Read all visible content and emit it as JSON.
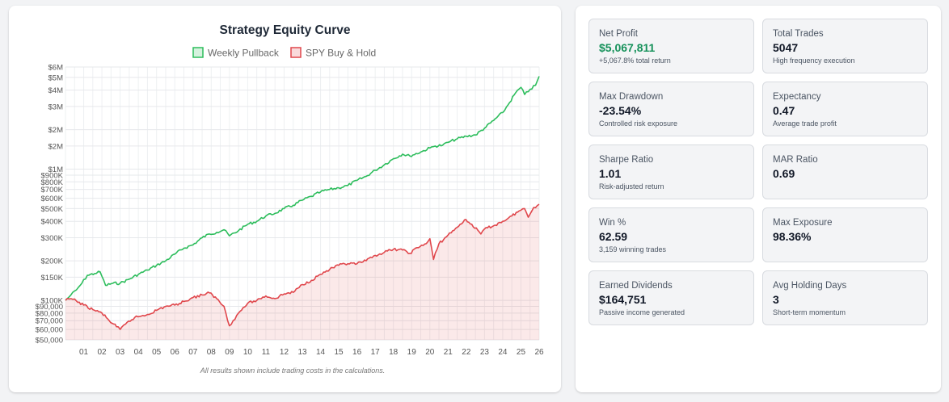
{
  "chart_data": {
    "type": "line",
    "title": "Strategy Equity Curve",
    "legend_position": "top-center",
    "yscale": "log",
    "ylim": [
      50000,
      6000000
    ],
    "xlim": [
      2000,
      2026
    ],
    "grid": true,
    "footnote": "All results shown include trading costs in the calculations.",
    "y_ticks": [
      50000,
      60000,
      70000,
      80000,
      90000,
      100000,
      150000,
      200000,
      300000,
      400000,
      500000,
      600000,
      700000,
      800000,
      900000,
      1000000,
      1500000,
      2000000,
      3000000,
      4000000,
      5000000,
      6000000
    ],
    "y_tick_labels": [
      "$50,000",
      "$60,000",
      "$70,000",
      "$80,000",
      "$90,000",
      "$100K",
      "$150K",
      "$200K",
      "$300K",
      "$400K",
      "$500K",
      "$600K",
      "$700K",
      "$800K",
      "$900K",
      "$1M",
      "$2M",
      "$2M",
      "$3M",
      "$4M",
      "$5M",
      "$6M"
    ],
    "x_ticks": [
      2001,
      2002,
      2003,
      2004,
      2005,
      2006,
      2007,
      2008,
      2009,
      2010,
      2011,
      2012,
      2013,
      2014,
      2015,
      2016,
      2017,
      2018,
      2019,
      2020,
      2021,
      2022,
      2023,
      2024,
      2025,
      2026
    ],
    "x_tick_labels": [
      "01",
      "02",
      "03",
      "04",
      "05",
      "06",
      "07",
      "08",
      "09",
      "10",
      "11",
      "12",
      "13",
      "14",
      "15",
      "16",
      "17",
      "18",
      "19",
      "20",
      "21",
      "22",
      "23",
      "24",
      "25",
      "26"
    ],
    "series": [
      {
        "name": "Weekly Pullback",
        "color": "#2dbd5c",
        "fill": false,
        "x": [
          2000.0,
          2000.3,
          2000.6,
          2000.9,
          2001.2,
          2001.6,
          2001.9,
          2002.2,
          2002.6,
          2003.0,
          2003.5,
          2004.0,
          2004.5,
          2005.0,
          2005.5,
          2006.0,
          2006.5,
          2007.0,
          2007.5,
          2007.9,
          2008.3,
          2008.7,
          2009.0,
          2009.5,
          2010.0,
          2010.5,
          2011.0,
          2011.5,
          2012.0,
          2012.5,
          2013.0,
          2013.5,
          2014.0,
          2014.5,
          2015.0,
          2015.5,
          2016.0,
          2016.5,
          2017.0,
          2017.5,
          2018.0,
          2018.5,
          2018.9,
          2019.5,
          2020.0,
          2020.3,
          2020.7,
          2021.0,
          2021.5,
          2022.0,
          2022.5,
          2023.0,
          2023.5,
          2024.0,
          2024.3,
          2024.7,
          2025.0,
          2025.2,
          2025.5,
          2025.8,
          2026.0
        ],
        "y": [
          100000,
          110000,
          120000,
          135000,
          155000,
          160000,
          165000,
          130000,
          135000,
          135000,
          145000,
          158000,
          170000,
          185000,
          200000,
          225000,
          250000,
          265000,
          300000,
          320000,
          330000,
          345000,
          310000,
          340000,
          380000,
          400000,
          440000,
          460000,
          500000,
          530000,
          580000,
          620000,
          670000,
          700000,
          720000,
          750000,
          820000,
          880000,
          980000,
          1080000,
          1200000,
          1300000,
          1260000,
          1350000,
          1450000,
          1500000,
          1520000,
          1600000,
          1700000,
          1780000,
          1820000,
          2050000,
          2350000,
          2700000,
          3100000,
          3800000,
          4200000,
          3700000,
          4050000,
          4350000,
          5100000
        ]
      },
      {
        "name": "SPY Buy & Hold",
        "color": "#e0474c",
        "fill": true,
        "x": [
          2000.0,
          2000.3,
          2000.6,
          2001.0,
          2001.5,
          2002.0,
          2002.4,
          2002.8,
          2003.0,
          2003.3,
          2003.8,
          2004.5,
          2005.0,
          2005.5,
          2006.0,
          2006.5,
          2007.0,
          2007.5,
          2007.9,
          2008.3,
          2008.7,
          2009.0,
          2009.2,
          2009.5,
          2010.0,
          2010.5,
          2011.0,
          2011.5,
          2012.0,
          2012.5,
          2013.0,
          2013.5,
          2014.0,
          2014.5,
          2015.0,
          2015.5,
          2016.0,
          2016.5,
          2017.0,
          2017.5,
          2018.0,
          2018.5,
          2018.9,
          2019.3,
          2019.8,
          2020.0,
          2020.2,
          2020.5,
          2021.0,
          2021.5,
          2021.9,
          2022.3,
          2022.8,
          2023.0,
          2023.5,
          2024.0,
          2024.5,
          2024.9,
          2025.2,
          2025.4,
          2025.7,
          2026.0
        ],
        "y": [
          100000,
          103000,
          99000,
          92000,
          85000,
          80000,
          70000,
          63000,
          60000,
          66000,
          74000,
          78000,
          84000,
          90000,
          92000,
          98000,
          105000,
          110000,
          114000,
          103000,
          90000,
          64000,
          70000,
          80000,
          95000,
          100000,
          108000,
          103000,
          112000,
          115000,
          132000,
          142000,
          158000,
          172000,
          185000,
          190000,
          190000,
          200000,
          220000,
          232000,
          245000,
          242000,
          228000,
          252000,
          270000,
          295000,
          205000,
          270000,
          315000,
          360000,
          410000,
          380000,
          320000,
          350000,
          370000,
          400000,
          440000,
          480000,
          500000,
          430000,
          510000,
          540000
        ]
      }
    ]
  },
  "stats": [
    {
      "label": "Net Profit",
      "value": "$5,067,811",
      "sub": "+5,067.8% total return",
      "value_color": "#15915a"
    },
    {
      "label": "Total Trades",
      "value": "5047",
      "sub": "High frequency execution"
    },
    {
      "label": "Max Drawdown",
      "value": "-23.54%",
      "sub": "Controlled risk exposure"
    },
    {
      "label": "Expectancy",
      "value": "0.47",
      "sub": "Average trade profit"
    },
    {
      "label": "Sharpe Ratio",
      "value": "1.01",
      "sub": "Risk-adjusted return"
    },
    {
      "label": "MAR Ratio",
      "value": "0.69",
      "sub": ""
    },
    {
      "label": "Win %",
      "value": "62.59",
      "sub": "3,159 winning trades"
    },
    {
      "label": "Max Exposure",
      "value": "98.36%",
      "sub": ""
    },
    {
      "label": "Earned Dividends",
      "value": "$164,751",
      "sub": "Passive income generated"
    },
    {
      "label": "Avg Holding Days",
      "value": "3",
      "sub": "Short-term momentum"
    }
  ]
}
